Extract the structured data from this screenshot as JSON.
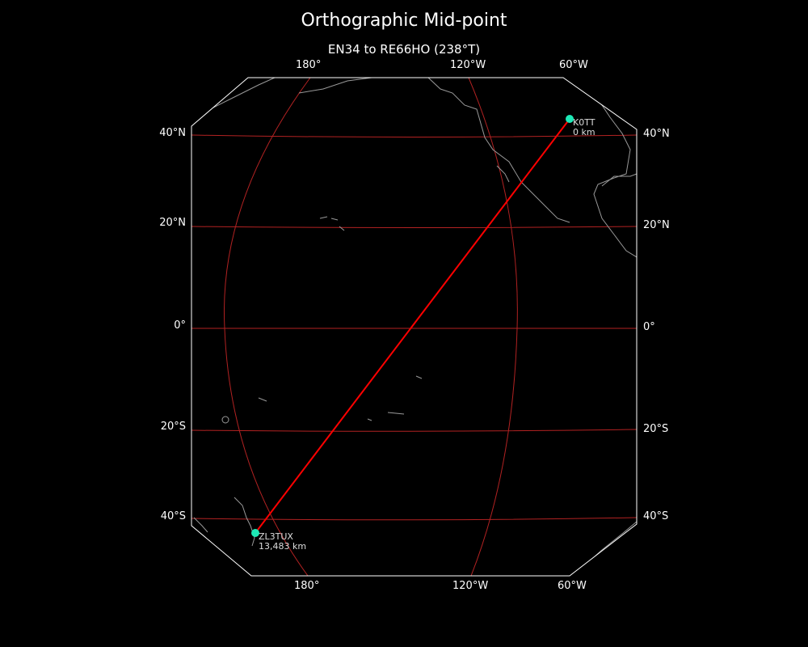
{
  "title": "Orthographic Mid-point",
  "subtitle": "EN34 to RE66HO (238°T)",
  "top_lon_labels": [
    "180°",
    "120°W",
    "60°W"
  ],
  "bottom_lon_labels": [
    "180°",
    "120°W",
    "60°W"
  ],
  "left_lat_labels": [
    "40°N",
    "20°N",
    "0°",
    "20°S",
    "40°S"
  ],
  "right_lat_labels": [
    "40°N",
    "20°N",
    "0°",
    "20°S",
    "40°S"
  ],
  "stations": [
    {
      "call": "K0TT",
      "distance": "0 km"
    },
    {
      "call": "ZL3TUX",
      "distance": "13,483 km"
    }
  ],
  "colors": {
    "path": "#ff0000",
    "graticule": "#b22222",
    "station": "#1de9b6",
    "coast": "#999999",
    "border": "#ffffff"
  }
}
